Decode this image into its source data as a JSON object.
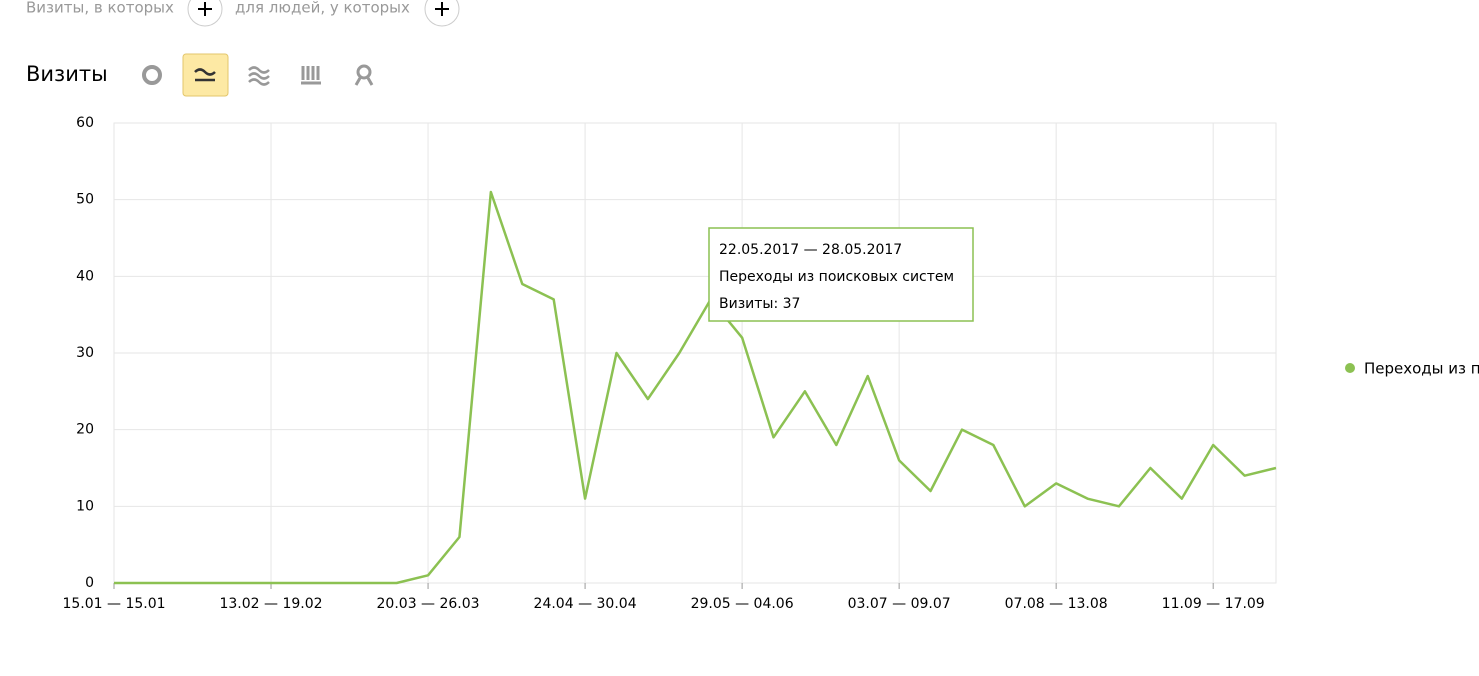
{
  "filters": {
    "visits_label": "Визиты, в которых",
    "people_label": "для людей, у которых"
  },
  "chart_data": {
    "type": "line",
    "title": "Визиты",
    "categories": [
      "15.01 — 15.01",
      null,
      null,
      null,
      null,
      "13.02 — 19.02",
      null,
      null,
      null,
      null,
      "20.03 — 26.03",
      null,
      null,
      null,
      null,
      "24.04 — 30.04",
      null,
      null,
      null,
      null,
      "29.05 — 04.06",
      null,
      null,
      null,
      null,
      "03.07 — 09.07",
      null,
      null,
      null,
      null,
      "07.08 — 13.08",
      null,
      null,
      null,
      null,
      "11.09 — 17.09",
      null,
      null
    ],
    "series": [
      {
        "name": "Переходы из поисковых систем",
        "color": "#8cc152",
        "values": [
          0,
          0,
          0,
          0,
          0,
          0,
          0,
          0,
          0,
          0,
          1,
          6,
          51,
          39,
          37,
          11,
          30,
          24,
          30,
          37,
          32,
          19,
          25,
          18,
          27,
          16,
          12,
          20,
          18,
          10,
          13,
          11,
          10,
          15,
          11,
          18,
          14,
          15
        ]
      }
    ],
    "ylim": [
      0,
      60
    ],
    "yticks": [
      0,
      10,
      20,
      30,
      40,
      50,
      60
    ],
    "grid": true,
    "legend": "right",
    "tooltip": {
      "title": "22.05.2017 — 28.05.2017",
      "text": "Визиты: 37"
    }
  }
}
